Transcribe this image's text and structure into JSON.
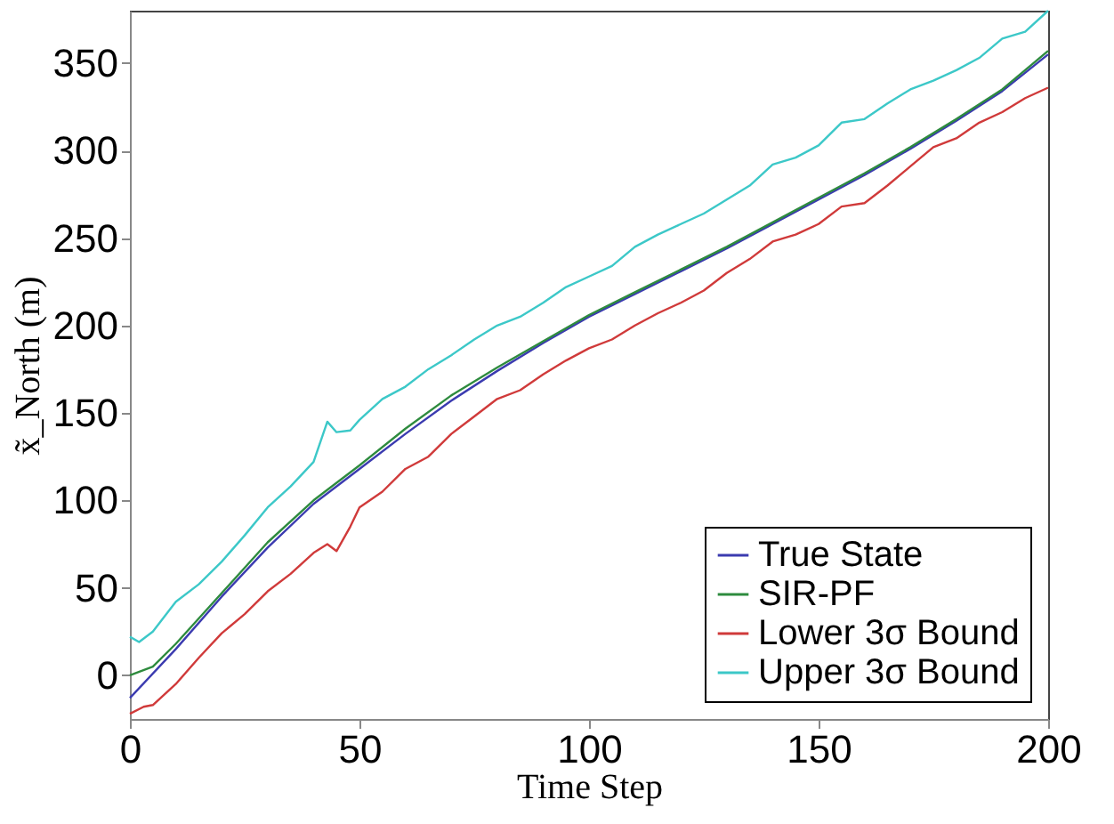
{
  "chart_data": {
    "type": "line",
    "xlabel": "Time Step",
    "ylabel": "x̃_North (m)",
    "xlim": [
      0,
      200
    ],
    "xticks": [
      0,
      50,
      100,
      150,
      200
    ],
    "ylim": [
      -25,
      380
    ],
    "yticks": [
      0,
      50,
      100,
      150,
      200,
      250,
      300,
      350
    ],
    "grid": false,
    "legend": "bottom right",
    "marker": "none",
    "line_style": "solid",
    "series": [
      {
        "name": "True State",
        "color": "#3b3bb0",
        "x": [
          0,
          10,
          20,
          30,
          40,
          50,
          60,
          70,
          80,
          90,
          100,
          110,
          120,
          130,
          140,
          150,
          160,
          170,
          180,
          190,
          200
        ],
        "values": [
          -13,
          15,
          45,
          73,
          98,
          118,
          138,
          157,
          174,
          190,
          205,
          218,
          231,
          244,
          258,
          272,
          286,
          301,
          317,
          334,
          355
        ]
      },
      {
        "name": "SIR-PF",
        "color": "#2e8b3e",
        "x": [
          0,
          5,
          10,
          20,
          30,
          40,
          50,
          60,
          70,
          80,
          90,
          100,
          110,
          120,
          130,
          140,
          150,
          160,
          170,
          180,
          190,
          200
        ],
        "values": [
          0,
          5,
          18,
          47,
          76,
          100,
          120,
          141,
          160,
          176,
          191,
          206,
          219,
          232,
          245,
          259,
          273,
          287,
          302,
          318,
          335,
          357
        ]
      },
      {
        "name": "Lower 3σ Bound",
        "color": "#d03a3a",
        "x": [
          0,
          3,
          5,
          10,
          15,
          20,
          25,
          30,
          35,
          40,
          43,
          45,
          48,
          50,
          55,
          60,
          65,
          70,
          75,
          80,
          85,
          90,
          95,
          100,
          105,
          110,
          115,
          120,
          125,
          130,
          135,
          140,
          145,
          150,
          155,
          160,
          165,
          170,
          175,
          180,
          185,
          190,
          195,
          200
        ],
        "values": [
          -22,
          -18,
          -17,
          -5,
          10,
          24,
          35,
          48,
          58,
          70,
          75,
          71,
          85,
          96,
          105,
          118,
          125,
          138,
          148,
          158,
          163,
          172,
          180,
          187,
          192,
          200,
          207,
          213,
          220,
          230,
          238,
          248,
          252,
          258,
          268,
          270,
          280,
          291,
          302,
          307,
          316,
          322,
          330,
          336
        ]
      },
      {
        "name": "Upper 3σ Bound",
        "color": "#3cc8c8",
        "x": [
          0,
          2,
          5,
          10,
          15,
          20,
          25,
          30,
          35,
          40,
          43,
          45,
          48,
          50,
          55,
          60,
          65,
          70,
          75,
          80,
          85,
          90,
          95,
          100,
          105,
          110,
          115,
          120,
          125,
          130,
          135,
          140,
          145,
          150,
          155,
          160,
          165,
          170,
          175,
          180,
          185,
          190,
          195,
          200
        ],
        "values": [
          22,
          19,
          25,
          42,
          52,
          65,
          80,
          96,
          108,
          122,
          145,
          139,
          140,
          146,
          158,
          165,
          175,
          183,
          192,
          200,
          205,
          213,
          222,
          228,
          234,
          245,
          252,
          258,
          264,
          272,
          280,
          292,
          296,
          303,
          316,
          318,
          327,
          335,
          340,
          346,
          353,
          364,
          368,
          380
        ]
      }
    ]
  }
}
